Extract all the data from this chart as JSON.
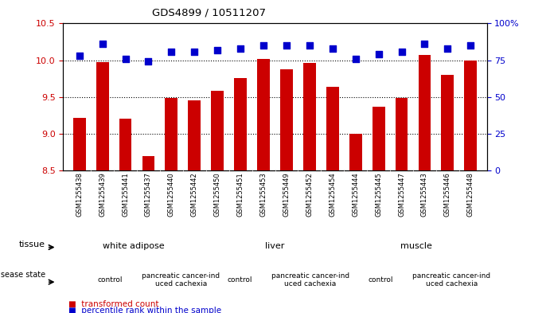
{
  "title": "GDS4899 / 10511207",
  "samples": [
    "GSM1255438",
    "GSM1255439",
    "GSM1255441",
    "GSM1255437",
    "GSM1255440",
    "GSM1255442",
    "GSM1255450",
    "GSM1255451",
    "GSM1255453",
    "GSM1255449",
    "GSM1255452",
    "GSM1255454",
    "GSM1255444",
    "GSM1255445",
    "GSM1255447",
    "GSM1255443",
    "GSM1255446",
    "GSM1255448"
  ],
  "red_values": [
    9.22,
    9.97,
    9.21,
    8.7,
    9.49,
    9.45,
    9.59,
    9.76,
    10.02,
    9.88,
    9.96,
    9.64,
    9.0,
    9.37,
    9.49,
    10.07,
    9.8,
    10.0
  ],
  "blue_values": [
    78,
    86,
    76,
    74,
    81,
    81,
    82,
    83,
    85,
    85,
    85,
    83,
    76,
    79,
    81,
    86,
    83,
    85
  ],
  "ylim_left": [
    8.5,
    10.5
  ],
  "ylim_right": [
    0,
    100
  ],
  "yticks_left": [
    8.5,
    9.0,
    9.5,
    10.0,
    10.5
  ],
  "yticks_right": [
    0,
    25,
    50,
    75,
    100
  ],
  "tissue_groups": [
    {
      "label": "white adipose",
      "start": 0,
      "end": 6,
      "color": "#aaddaa"
    },
    {
      "label": "liver",
      "start": 6,
      "end": 12,
      "color": "#aaddaa"
    },
    {
      "label": "muscle",
      "start": 12,
      "end": 18,
      "color": "#66cc66"
    }
  ],
  "disease_groups": [
    {
      "label": "control",
      "start": 0,
      "end": 4,
      "color": "#ee88ee"
    },
    {
      "label": "pancreatic cancer-ind\nuced cachexia",
      "start": 4,
      "end": 6,
      "color": "#dd66dd"
    },
    {
      "label": "control",
      "start": 6,
      "end": 9,
      "color": "#ee88ee"
    },
    {
      "label": "pancreatic cancer-ind\nuced cachexia",
      "start": 9,
      "end": 12,
      "color": "#dd66dd"
    },
    {
      "label": "control",
      "start": 12,
      "end": 15,
      "color": "#ee88ee"
    },
    {
      "label": "pancreatic cancer-ind\nuced cachexia",
      "start": 15,
      "end": 18,
      "color": "#dd66dd"
    }
  ],
  "bar_color": "#CC0000",
  "dot_color": "#0000CC",
  "tick_color_left": "#CC0000",
  "tick_color_right": "#0000CC",
  "bar_width": 0.55,
  "dot_size": 28,
  "label_fontsize": 6.0,
  "tissue_fontsize": 8,
  "disease_fontsize": 6.5
}
